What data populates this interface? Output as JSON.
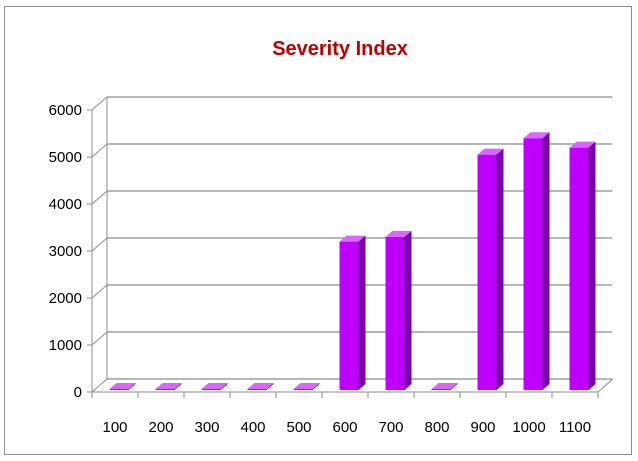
{
  "chart_data": {
    "type": "bar",
    "title": "Severity Index",
    "xlabel": "",
    "ylabel": "",
    "categories": [
      "100",
      "200",
      "300",
      "400",
      "500",
      "600",
      "700",
      "800",
      "900",
      "1000",
      "1100"
    ],
    "values": [
      0,
      0,
      0,
      0,
      0,
      3200,
      3300,
      0,
      5050,
      5400,
      5200
    ],
    "ylim": [
      0,
      6000
    ],
    "yticks": [
      "0",
      "1000",
      "2000",
      "3000",
      "4000",
      "5000",
      "6000"
    ],
    "grid": true,
    "legend": "none",
    "bar_color": "#bf00ff",
    "bar_side_color": "#7a00a8",
    "bar_top_color": "#d966ff",
    "title_color": "#c00000"
  }
}
